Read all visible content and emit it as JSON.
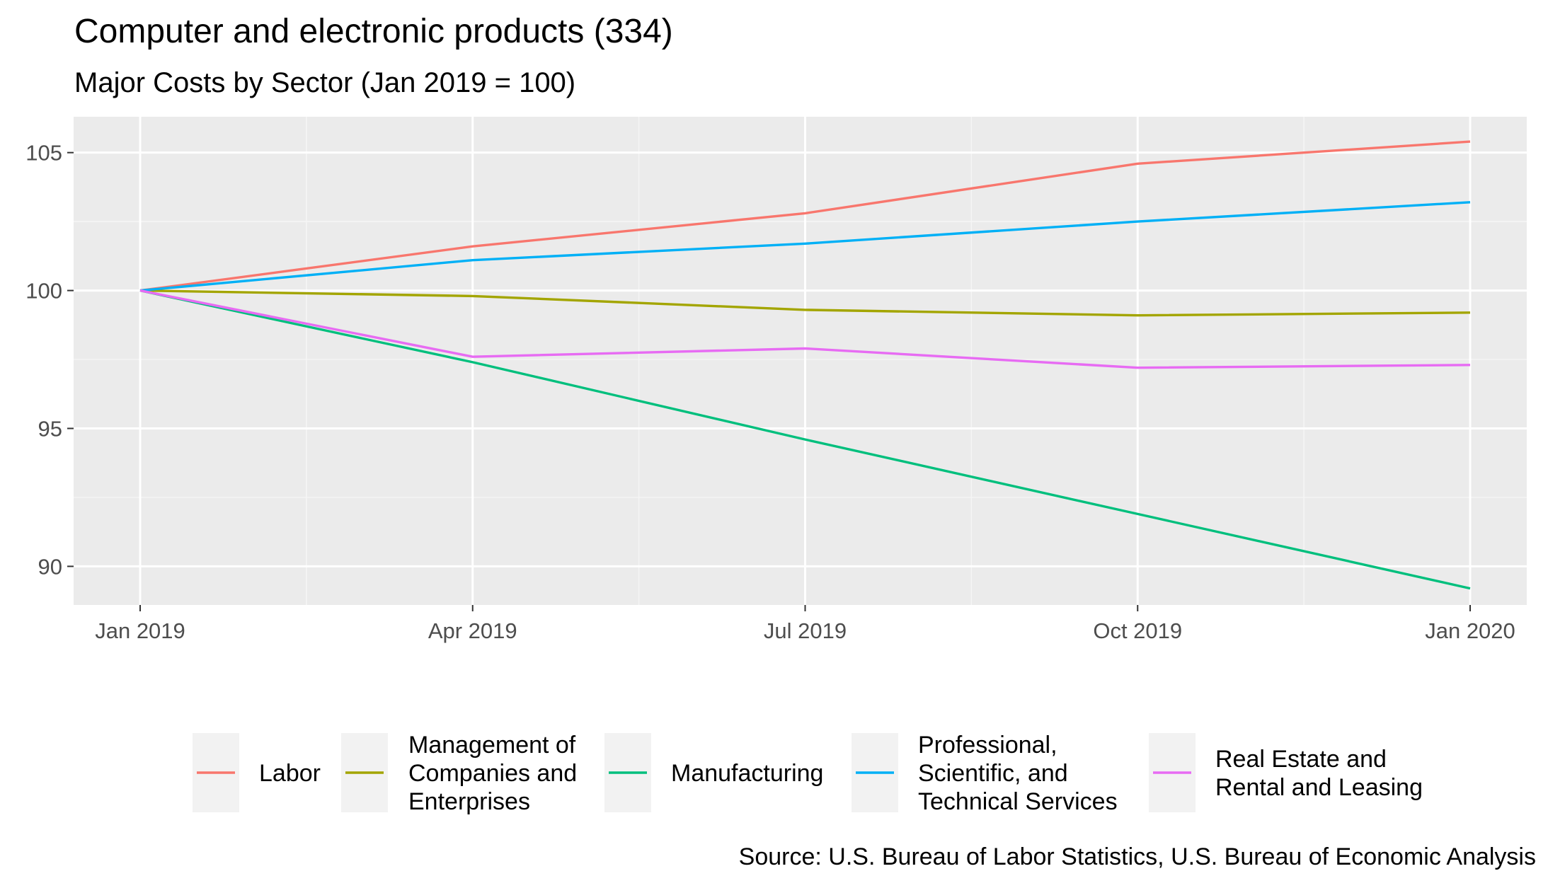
{
  "chart_data": {
    "type": "line",
    "title": "Computer and electronic products (334)",
    "subtitle": "Major Costs by Sector (Jan 2019 = 100)",
    "caption": "Source: U.S. Bureau of Labor Statistics, U.S. Bureau of Economic Analysis",
    "xlabel": "",
    "ylabel": "",
    "x": [
      "2019-01",
      "2019-04",
      "2019-07",
      "2019-10",
      "2020-01"
    ],
    "x_tick_labels": [
      "Jan 2019",
      "Apr 2019",
      "Jul 2019",
      "Oct 2019",
      "Jan 2020"
    ],
    "y_ticks": [
      90,
      95,
      100,
      105
    ],
    "ylim": [
      88.6,
      106.3
    ],
    "grid": true,
    "legend_position": "bottom",
    "series": [
      {
        "name": "Labor",
        "legend_lines": [
          "Labor"
        ],
        "color": "#F8766D",
        "values": [
          100,
          101.6,
          102.8,
          104.6,
          105.4
        ]
      },
      {
        "name": "Management of Companies and Enterprises",
        "legend_lines": [
          "Management of",
          "Companies and",
          "Enterprises"
        ],
        "color": "#A3A500",
        "values": [
          100,
          99.8,
          99.3,
          99.1,
          99.2
        ]
      },
      {
        "name": "Manufacturing",
        "legend_lines": [
          "Manufacturing"
        ],
        "color": "#00BF7D",
        "values": [
          100,
          97.4,
          94.6,
          91.9,
          89.2
        ]
      },
      {
        "name": "Professional, Scientific, and Technical Services",
        "legend_lines": [
          "Professional,",
          "Scientific, and",
          "Technical Services"
        ],
        "color": "#00B0F6",
        "values": [
          100,
          101.1,
          101.7,
          102.5,
          103.2
        ]
      },
      {
        "name": "Real Estate and Rental and Leasing",
        "legend_lines": [
          "Real Estate and",
          "Rental and Leasing"
        ],
        "color": "#E76BF3",
        "values": [
          100,
          97.6,
          97.9,
          97.2,
          97.3
        ]
      }
    ]
  }
}
